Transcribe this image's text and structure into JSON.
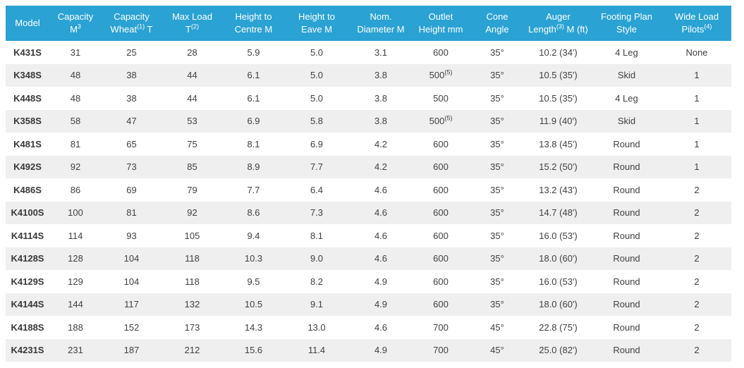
{
  "colors": {
    "header_bg": "#2AA2D3",
    "header_text": "#FFFFFF",
    "row_bg": "#FFFFFF",
    "row_alt_bg": "#EFEFEF",
    "body_text": "#404040",
    "model_text": "#383838"
  },
  "table": {
    "columns": [
      {
        "id": "model",
        "label": "Model"
      },
      {
        "id": "capacity-m3",
        "label": "Capacity\nM^3"
      },
      {
        "id": "capacity-wheat-t",
        "label": "Capacity\nWheat^(1) T"
      },
      {
        "id": "max-load-t",
        "label": "Max Load\nT^(2)"
      },
      {
        "id": "height-to-centre-m",
        "label": "Height to\nCentre M"
      },
      {
        "id": "height-to-eave-m",
        "label": "Height to\nEave M"
      },
      {
        "id": "nom-diameter-m",
        "label": "Nom.\nDiameter M"
      },
      {
        "id": "outlet-height-mm",
        "label": "Outlet\nHeight mm"
      },
      {
        "id": "cone-angle",
        "label": "Cone\nAngle"
      },
      {
        "id": "auger-length-m-ft",
        "label": "Auger\nLength^(3) M (ft)"
      },
      {
        "id": "footing-plan-style",
        "label": "Footing Plan\nStyle"
      },
      {
        "id": "wide-load-pilots",
        "label": "Wide Load\nPilots^(4)"
      }
    ],
    "rows": [
      [
        "K431S",
        "31",
        "25",
        "28",
        "5.9",
        "5.0",
        "3.1",
        "600",
        "35°",
        "10.2 (34')",
        "4 Leg",
        "None"
      ],
      [
        "K348S",
        "48",
        "38",
        "44",
        "6.1",
        "5.0",
        "3.8",
        "500^(5)",
        "35°",
        "10.5 (35')",
        "Skid",
        "1"
      ],
      [
        "K448S",
        "48",
        "38",
        "44",
        "6.1",
        "5.0",
        "3.8",
        "500",
        "35°",
        "10.5 (35')",
        "4 Leg",
        "1"
      ],
      [
        "K358S",
        "58",
        "47",
        "53",
        "6.9",
        "5.8",
        "3.8",
        "500^(5)",
        "35°",
        "11.9 (40')",
        "Skid",
        "1"
      ],
      [
        "K481S",
        "81",
        "65",
        "75",
        "8.1",
        "6.9",
        "4.2",
        "600",
        "35°",
        "13.8 (45')",
        "Round",
        "1"
      ],
      [
        "K492S",
        "92",
        "73",
        "85",
        "8.9",
        "7.7",
        "4.2",
        "600",
        "35°",
        "15.2 (50')",
        "Round",
        "1"
      ],
      [
        "K486S",
        "86",
        "69",
        "79",
        "7.7",
        "6.4",
        "4.6",
        "600",
        "35°",
        "13.2 (43')",
        "Round",
        "2"
      ],
      [
        "K4100S",
        "100",
        "81",
        "92",
        "8.6",
        "7.3",
        "4.6",
        "600",
        "35°",
        "14.7 (48')",
        "Round",
        "2"
      ],
      [
        "K4114S",
        "114",
        "93",
        "105",
        "9.4",
        "8.1",
        "4.6",
        "600",
        "35°",
        "16.0 (53')",
        "Round",
        "2"
      ],
      [
        "K4128S",
        "128",
        "104",
        "118",
        "10.3",
        "9.0",
        "4.6",
        "600",
        "35°",
        "18.0 (60')",
        "Round",
        "2"
      ],
      [
        "K4129S",
        "129",
        "104",
        "118",
        "9.5",
        "8.2",
        "4.9",
        "600",
        "35°",
        "16.0 (53')",
        "Round",
        "2"
      ],
      [
        "K4144S",
        "144",
        "117",
        "132",
        "10.5",
        "9.1",
        "4.9",
        "600",
        "35°",
        "18.0 (60')",
        "Round",
        "2"
      ],
      [
        "K4188S",
        "188",
        "152",
        "173",
        "14.3",
        "13.0",
        "4.6",
        "700",
        "45°",
        "22.8 (75')",
        "Round",
        "2"
      ],
      [
        "K4231S",
        "231",
        "187",
        "212",
        "15.6",
        "11.4",
        "4.9",
        "700",
        "45°",
        "25.0 (82')",
        "Round",
        "2"
      ]
    ]
  }
}
